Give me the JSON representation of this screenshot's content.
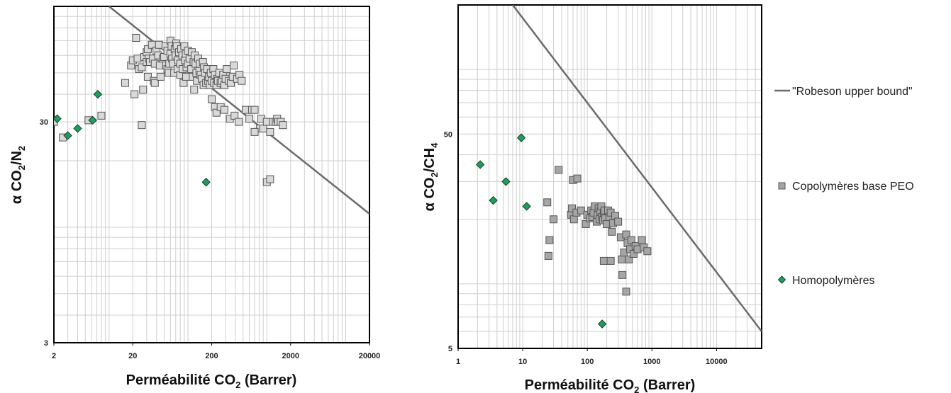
{
  "chart_data": [
    {
      "type": "scatter",
      "xlabel": "Perméabilité CO",
      "xlabel_sub": "2",
      "xlabel_tail": " (Barrer)",
      "ylabel_parts": [
        "α CO",
        "2",
        "/N",
        "2"
      ],
      "xscale": "log",
      "yscale": "log",
      "xlim": [
        2,
        20000
      ],
      "ylim": [
        3,
        100
      ],
      "xticks": [
        2,
        20,
        200,
        2000,
        20000
      ],
      "yticks": [
        3,
        30
      ],
      "grid": true,
      "line": {
        "name": "\"Robeson upper bound\"",
        "points": [
          [
            10,
            100
          ],
          [
            20000,
            11.5
          ]
        ]
      },
      "series": [
        {
          "name": "Copolymères base PEO",
          "marker": "square",
          "color": "#d9d9d9",
          "points": [
            [
              2.0,
              30
            ],
            [
              2.6,
              25.5
            ],
            [
              5.5,
              30.5
            ],
            [
              8,
              32
            ],
            [
              16,
              45
            ],
            [
              19,
              54
            ],
            [
              20,
              57
            ],
            [
              21,
              40
            ],
            [
              22,
              72
            ],
            [
              23,
              58
            ],
            [
              24,
              52
            ],
            [
              26,
              29
            ],
            [
              26,
              53
            ],
            [
              27,
              42
            ],
            [
              28,
              59
            ],
            [
              30,
              62
            ],
            [
              30,
              56
            ],
            [
              31,
              64
            ],
            [
              31,
              48
            ],
            [
              32,
              58
            ],
            [
              33,
              56
            ],
            [
              35,
              67
            ],
            [
              36,
              58
            ],
            [
              37,
              46
            ],
            [
              38,
              45
            ],
            [
              38,
              55
            ],
            [
              40,
              63
            ],
            [
              42,
              60
            ],
            [
              43,
              67
            ],
            [
              44,
              54
            ],
            [
              45,
              48
            ],
            [
              48,
              58
            ],
            [
              50,
              59
            ],
            [
              52,
              66
            ],
            [
              53,
              54
            ],
            [
              55,
              63
            ],
            [
              55,
              52
            ],
            [
              57,
              50
            ],
            [
              58,
              55
            ],
            [
              60,
              70
            ],
            [
              60,
              61
            ],
            [
              62,
              66
            ],
            [
              63,
              58
            ],
            [
              65,
              55
            ],
            [
              67,
              50
            ],
            [
              68,
              64
            ],
            [
              70,
              60
            ],
            [
              71,
              68
            ],
            [
              72,
              66
            ],
            [
              74,
              52
            ],
            [
              75,
              57
            ],
            [
              77,
              62
            ],
            [
              80,
              55
            ],
            [
              80,
              49
            ],
            [
              82,
              64
            ],
            [
              85,
              60
            ],
            [
              86,
              52
            ],
            [
              88,
              45
            ],
            [
              90,
              66
            ],
            [
              92,
              57
            ],
            [
              94,
              61
            ],
            [
              95,
              48
            ],
            [
              96,
              53
            ],
            [
              100,
              55
            ],
            [
              100,
              63
            ],
            [
              105,
              58
            ],
            [
              110,
              52
            ],
            [
              112,
              62
            ],
            [
              115,
              48
            ],
            [
              118,
              56
            ],
            [
              120,
              42
            ],
            [
              122,
              60
            ],
            [
              125,
              55
            ],
            [
              128,
              50
            ],
            [
              130,
              46
            ],
            [
              135,
              58
            ],
            [
              140,
              51
            ],
            [
              142,
              55
            ],
            [
              145,
              49
            ],
            [
              150,
              47
            ],
            [
              155,
              56
            ],
            [
              158,
              44
            ],
            [
              160,
              53
            ],
            [
              165,
              50
            ],
            [
              170,
              45
            ],
            [
              175,
              52
            ],
            [
              180,
              46
            ],
            [
              185,
              48
            ],
            [
              190,
              44
            ],
            [
              195,
              50
            ],
            [
              200,
              46
            ],
            [
              210,
              52
            ],
            [
              215,
              45
            ],
            [
              220,
              49
            ],
            [
              230,
              44
            ],
            [
              235,
              47
            ],
            [
              240,
              46
            ],
            [
              250,
              50
            ],
            [
              260,
              45
            ],
            [
              270,
              46
            ],
            [
              280,
              49
            ],
            [
              290,
              44
            ],
            [
              300,
              47
            ],
            [
              310,
              52
            ],
            [
              330,
              46
            ],
            [
              350,
              45
            ],
            [
              370,
              48
            ],
            [
              380,
              54
            ],
            [
              420,
              47
            ],
            [
              450,
              49
            ],
            [
              480,
              46
            ],
            [
              200,
              38
            ],
            [
              220,
              35
            ],
            [
              230,
              33
            ],
            [
              260,
              35
            ],
            [
              290,
              34
            ],
            [
              340,
              31
            ],
            [
              390,
              32
            ],
            [
              440,
              30
            ],
            [
              540,
              34
            ],
            [
              600,
              31
            ],
            [
              650,
              34
            ],
            [
              700,
              34
            ],
            [
              820,
              28
            ],
            [
              850,
              31
            ],
            [
              900,
              28
            ],
            [
              1000,
              30
            ],
            [
              1100,
              27
            ],
            [
              1200,
              30
            ],
            [
              1300,
              30
            ],
            [
              1350,
              31
            ],
            [
              1400,
              30
            ],
            [
              1500,
              30
            ],
            [
              1600,
              29
            ],
            [
              1000,
              16
            ],
            [
              1100,
              16.5
            ],
            [
              700,
              27
            ]
          ]
        },
        {
          "name": "Homopolymères",
          "marker": "diamond",
          "color": "#1e9e5a",
          "points": [
            [
              2.2,
              31
            ],
            [
              3.0,
              26
            ],
            [
              4.0,
              28
            ],
            [
              6.2,
              30.5
            ],
            [
              7.2,
              40
            ],
            [
              170,
              16
            ]
          ]
        }
      ]
    },
    {
      "type": "scatter",
      "xlabel": "Perméabilité CO",
      "xlabel_sub": "2",
      "xlabel_tail": " (Barrer)",
      "ylabel_parts": [
        "α CO",
        "2",
        "/CH",
        "4"
      ],
      "xscale": "log",
      "yscale": "log",
      "xlim": [
        1,
        50000
      ],
      "ylim": [
        5,
        200
      ],
      "xticks": [
        1,
        10,
        100,
        1000,
        10000
      ],
      "yticks": [
        5,
        50
      ],
      "grid": true,
      "line": {
        "name": "\"Robeson upper bound\"",
        "points": [
          [
            7,
            200
          ],
          [
            50000,
            6
          ]
        ]
      },
      "series": [
        {
          "name": "Copolymères base PEO",
          "marker": "square",
          "color": "#a6a6a6",
          "points": [
            [
              25,
              13.5
            ],
            [
              26,
              16
            ],
            [
              24,
              24
            ],
            [
              30,
              20
            ],
            [
              36,
              34
            ],
            [
              56,
              21
            ],
            [
              58,
              22.5
            ],
            [
              62,
              20
            ],
            [
              68,
              21.5
            ],
            [
              80,
              22
            ],
            [
              95,
              19
            ],
            [
              100,
              21
            ],
            [
              110,
              20.2
            ],
            [
              115,
              22
            ],
            [
              120,
              20.5
            ],
            [
              125,
              21.5
            ],
            [
              130,
              23
            ],
            [
              140,
              19.5
            ],
            [
              145,
              21
            ],
            [
              150,
              22.5
            ],
            [
              155,
              20
            ],
            [
              160,
              21.8
            ],
            [
              165,
              23
            ],
            [
              170,
              20.5
            ],
            [
              175,
              19.8
            ],
            [
              180,
              21.5
            ],
            [
              185,
              22
            ],
            [
              190,
              20.2
            ],
            [
              200,
              19
            ],
            [
              210,
              22
            ],
            [
              220,
              20.5
            ],
            [
              230,
              21.5
            ],
            [
              240,
              17.5
            ],
            [
              250,
              19.2
            ],
            [
              270,
              20.8
            ],
            [
              300,
              19.5
            ],
            [
              330,
              16.5
            ],
            [
              340,
              13
            ],
            [
              370,
              14
            ],
            [
              400,
              17
            ],
            [
              420,
              15.5
            ],
            [
              440,
              13
            ],
            [
              460,
              14.5
            ],
            [
              480,
              16
            ],
            [
              520,
              13.8
            ],
            [
              560,
              15
            ],
            [
              600,
              14.5
            ],
            [
              700,
              16
            ],
            [
              750,
              14.8
            ],
            [
              850,
              14.2
            ],
            [
              180,
              12.8
            ],
            [
              230,
              12.8
            ],
            [
              350,
              11
            ],
            [
              400,
              9.2
            ],
            [
              60,
              30.5
            ],
            [
              70,
              31
            ]
          ]
        },
        {
          "name": "Homopolymères",
          "marker": "diamond",
          "color": "#1e9e5a",
          "points": [
            [
              2.2,
              36
            ],
            [
              3.5,
              24.5
            ],
            [
              5.5,
              30
            ],
            [
              9.5,
              48
            ],
            [
              11.5,
              23
            ],
            [
              170,
              6.5
            ]
          ]
        }
      ]
    }
  ],
  "legend": {
    "robeson": "\"Robeson upper bound\"",
    "copolymers": "Copolymères base PEO",
    "homopolymers": "Homopolymères"
  }
}
